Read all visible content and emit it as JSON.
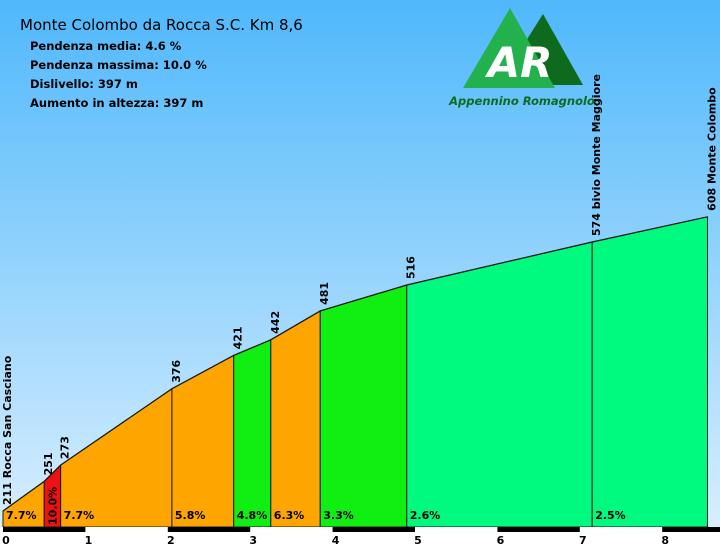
{
  "header": {
    "title": "Monte Colombo da Rocca S.C. Km 8,6",
    "stats": [
      "Pendenza media: 4.6 %",
      "Pendenza massima: 10.0 %",
      "Dislivello: 397  m",
      "Aumento in altezza: 397 m"
    ]
  },
  "logo": {
    "letters": "AR",
    "caption": "Appennino Romagnolo",
    "colors": {
      "light": "#22b14c",
      "dark": "#0e6b1e"
    }
  },
  "colors": {
    "sky_top": "#4fb8fb",
    "sky_bottom": "#dff1ff",
    "ground": "#ffffff",
    "orange": "#ffa500",
    "red": "#ee1111",
    "green": "#11ee11",
    "spring": "#00fa7f"
  },
  "chart_data": {
    "type": "area",
    "xlabel": "",
    "ylabel": "",
    "xlim": [
      0,
      8.6
    ],
    "x_ticks": [
      "0",
      "1",
      "2",
      "3",
      "4",
      "5",
      "6",
      "7",
      "8"
    ],
    "profile": [
      {
        "km": 0.0,
        "alt": 211
      },
      {
        "km": 0.5,
        "alt": 251
      },
      {
        "km": 0.7,
        "alt": 273
      },
      {
        "km": 2.05,
        "alt": 376
      },
      {
        "km": 2.8,
        "alt": 421
      },
      {
        "km": 3.25,
        "alt": 442
      },
      {
        "km": 3.85,
        "alt": 481
      },
      {
        "km": 4.9,
        "alt": 516
      },
      {
        "km": 7.15,
        "alt": 574
      },
      {
        "km": 8.55,
        "alt": 608
      }
    ],
    "point_labels": [
      "211 Rocca San Casciano",
      "251",
      "273",
      "376",
      "421",
      "442",
      "481",
      "516",
      "574 bivio Monte Maggiore",
      "608 Monte Colombo"
    ],
    "segments": [
      {
        "from": 0.0,
        "to": 0.5,
        "grade": "7.7%",
        "color": "orange"
      },
      {
        "from": 0.5,
        "to": 0.7,
        "grade": "10.0%",
        "color": "red"
      },
      {
        "from": 0.7,
        "to": 2.05,
        "grade": "7.7%",
        "color": "orange"
      },
      {
        "from": 2.05,
        "to": 2.8,
        "grade": "5.8%",
        "color": "orange"
      },
      {
        "from": 2.8,
        "to": 3.25,
        "grade": "4.8%",
        "color": "green"
      },
      {
        "from": 3.25,
        "to": 3.85,
        "grade": "6.3%",
        "color": "orange"
      },
      {
        "from": 3.85,
        "to": 4.9,
        "grade": "3.3%",
        "color": "green"
      },
      {
        "from": 4.9,
        "to": 7.15,
        "grade": "2.6%",
        "color": "spring"
      },
      {
        "from": 7.15,
        "to": 8.55,
        "grade": "2.5%",
        "color": "spring"
      }
    ]
  }
}
